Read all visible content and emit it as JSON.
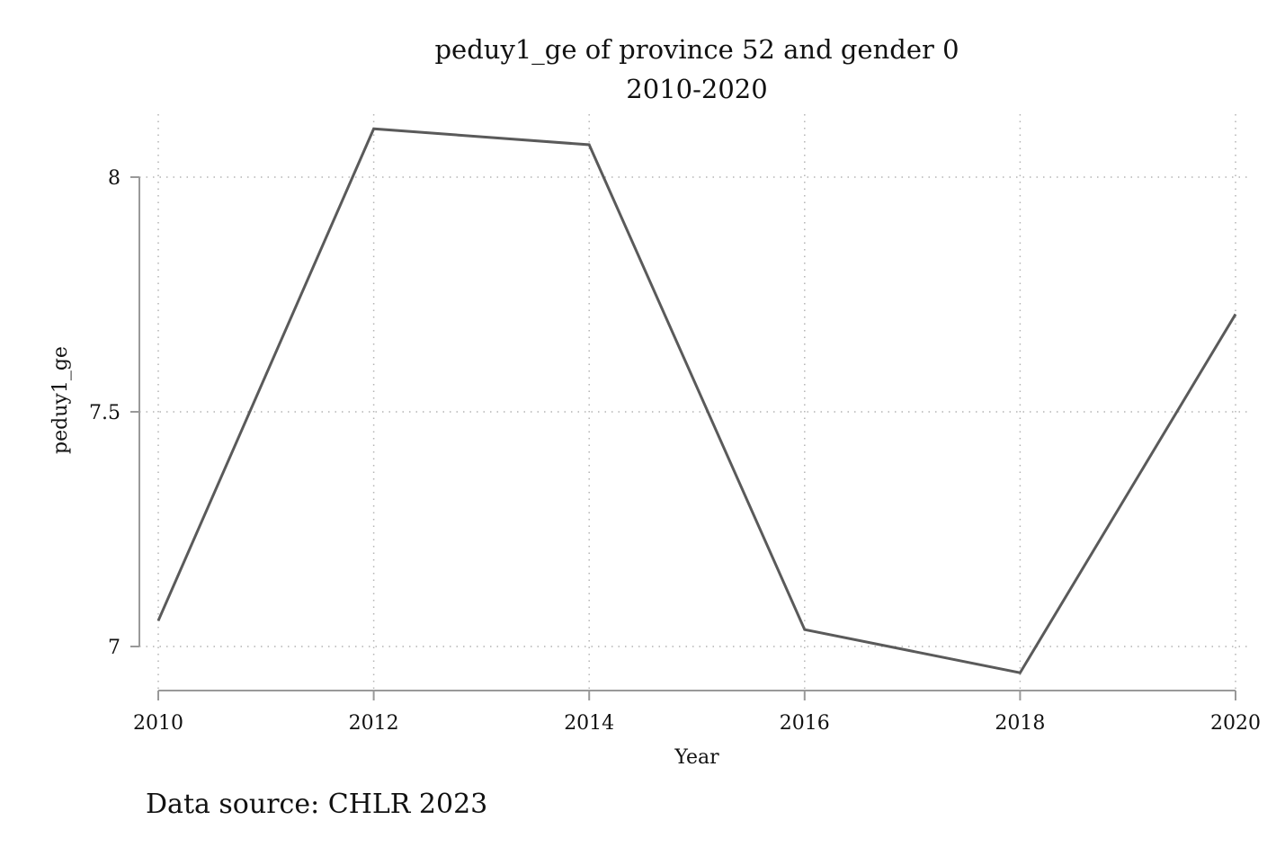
{
  "chart_data": {
    "type": "line",
    "title": "peduy1_ge of province 52 and gender 0",
    "subtitle": "2010-2020",
    "xlabel": "Year",
    "ylabel": "peduy1_ge",
    "x": [
      2010,
      2012,
      2014,
      2016,
      2018,
      2020
    ],
    "xticks": [
      "2010",
      "2012",
      "2014",
      "2016",
      "2018",
      "2020"
    ],
    "yticks": [
      "7",
      "7.5",
      "8"
    ],
    "xlim": [
      2010,
      2020
    ],
    "ylim": [
      7,
      8
    ],
    "series": [
      {
        "values": [
          7.055,
          8.103,
          8.069,
          7.036,
          6.944,
          7.708
        ]
      }
    ],
    "grid": true,
    "line_color": "#5a5a5a",
    "grid_color": "#b4b4b4",
    "axis_color": "#999999"
  },
  "footer": {
    "source": "Data source: CHLR 2023"
  }
}
